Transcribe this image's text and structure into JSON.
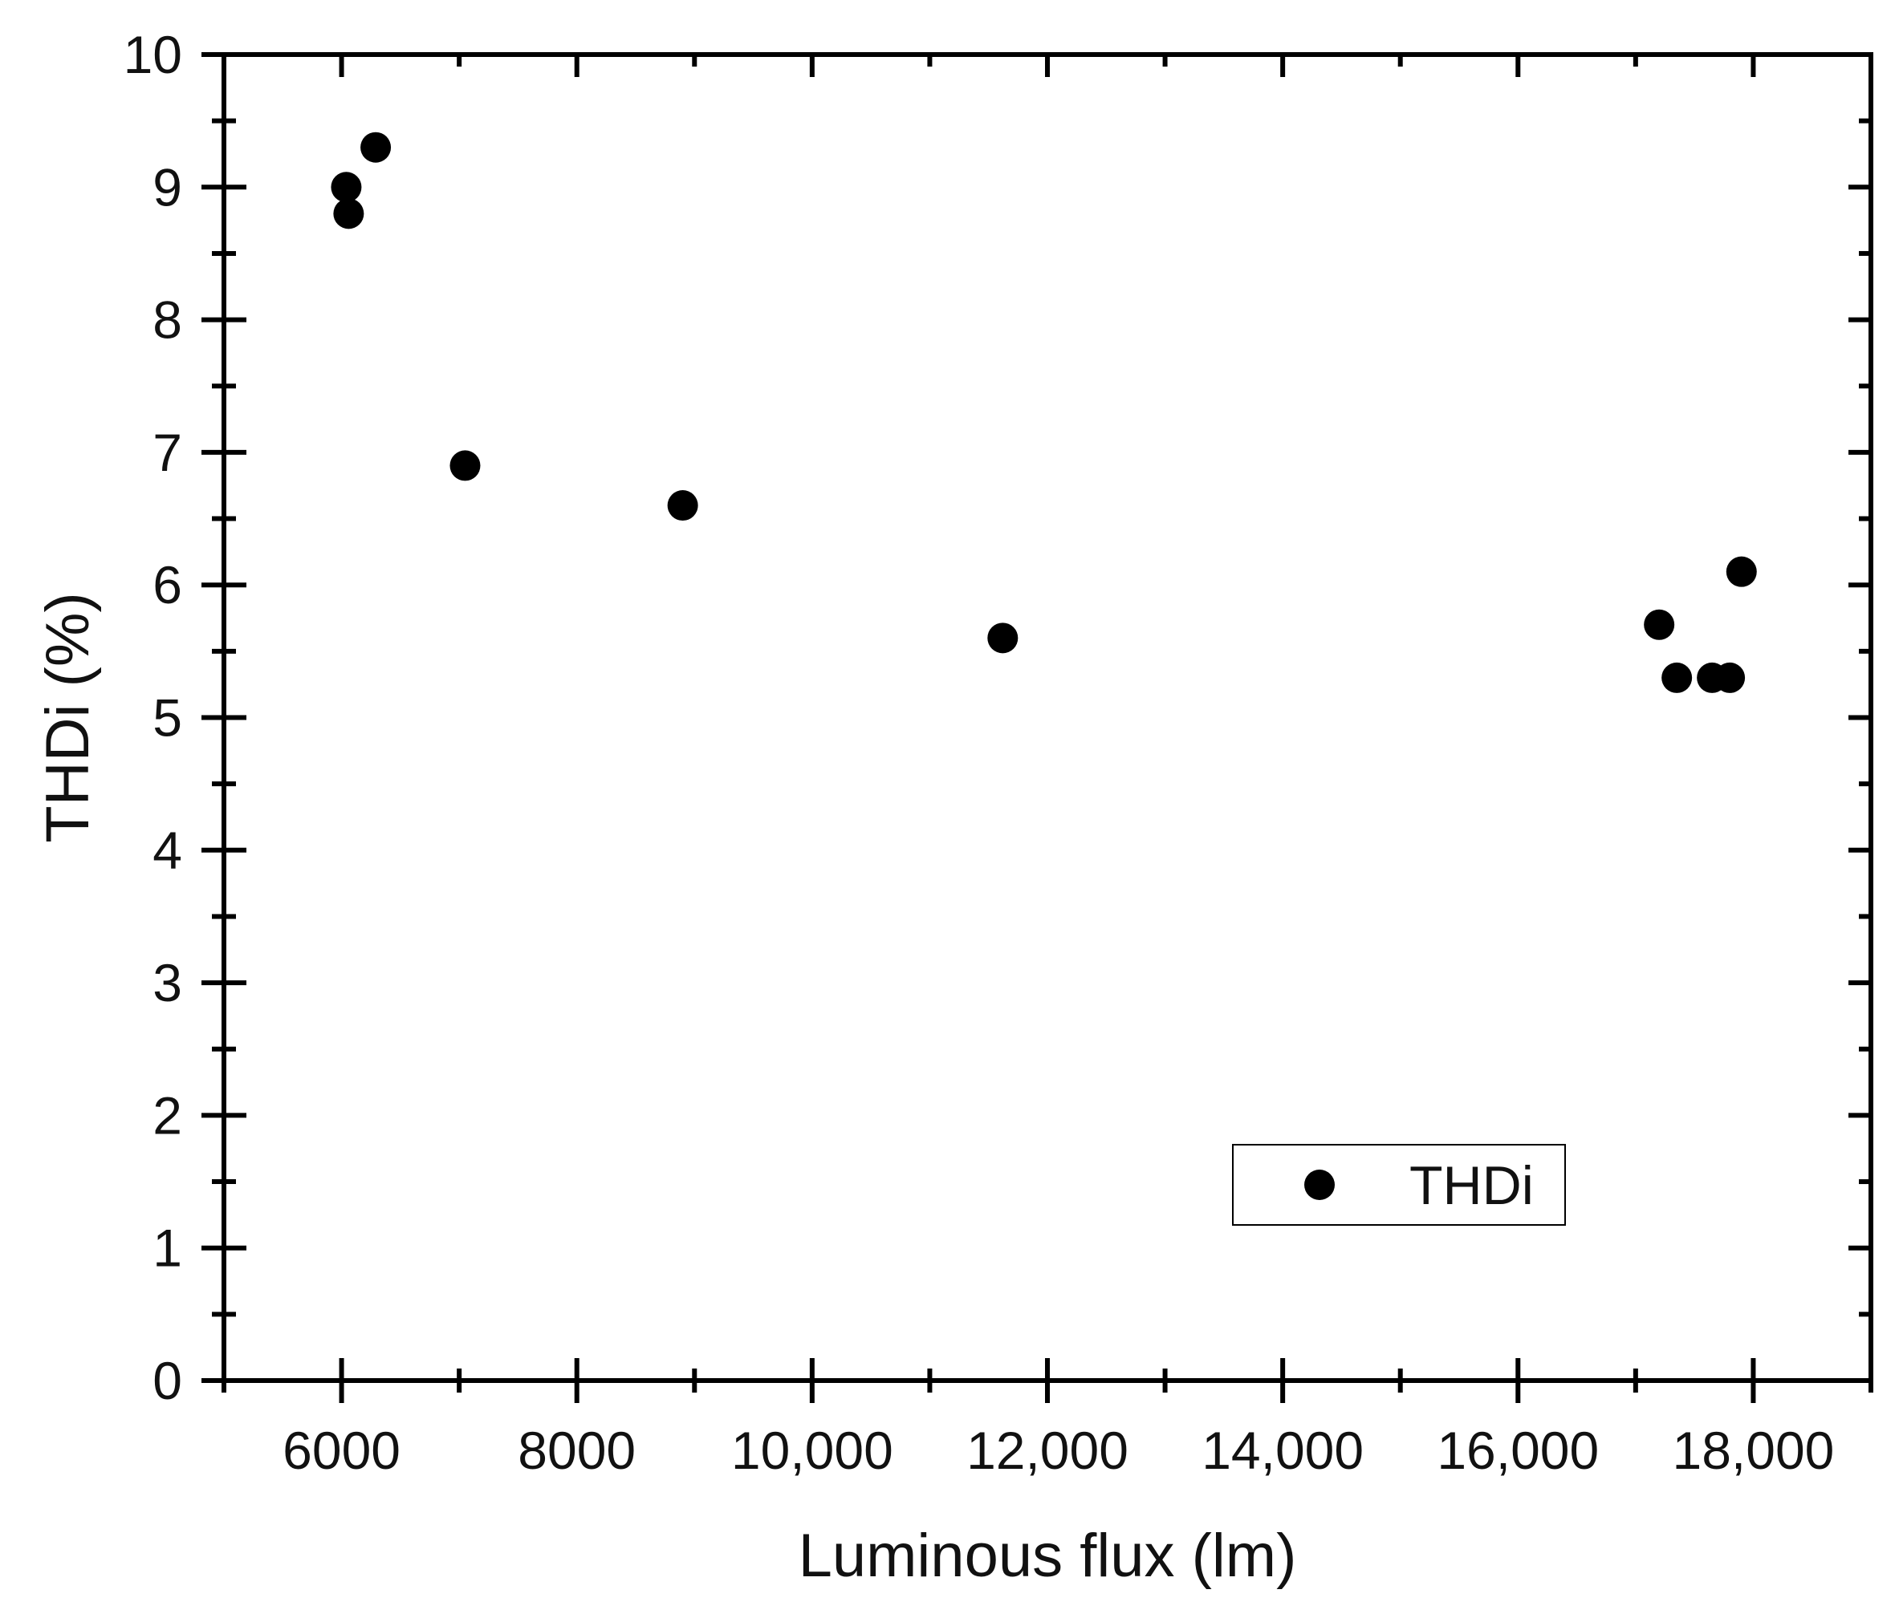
{
  "chart_data": {
    "type": "scatter",
    "xlabel": "Luminous flux (lm)",
    "ylabel": "THDi (%)",
    "xlim": [
      5000,
      19000
    ],
    "ylim": [
      0,
      10
    ],
    "x_ticks": [
      6000,
      8000,
      10000,
      12000,
      14000,
      16000,
      18000
    ],
    "x_tick_labels": [
      "6000",
      "8000",
      "10,000",
      "12,000",
      "14,000",
      "16,000",
      "18,000"
    ],
    "x_minor_step": 1000,
    "y_ticks": [
      0,
      1,
      2,
      3,
      4,
      5,
      6,
      7,
      8,
      9,
      10
    ],
    "y_tick_labels": [
      "0",
      "1",
      "2",
      "3",
      "4",
      "5",
      "6",
      "7",
      "8",
      "9",
      "10"
    ],
    "y_minor_step": 0.5,
    "grid": false,
    "legend_position": "bottom-right",
    "series": [
      {
        "name": "THDi",
        "color": "#000000",
        "marker": "circle",
        "points": [
          {
            "x": 6040,
            "y": 9.0
          },
          {
            "x": 6060,
            "y": 8.8
          },
          {
            "x": 6290,
            "y": 9.3
          },
          {
            "x": 7050,
            "y": 6.9
          },
          {
            "x": 8900,
            "y": 6.6
          },
          {
            "x": 11620,
            "y": 5.6
          },
          {
            "x": 17200,
            "y": 5.7
          },
          {
            "x": 17350,
            "y": 5.3
          },
          {
            "x": 17650,
            "y": 5.3
          },
          {
            "x": 17800,
            "y": 5.3
          },
          {
            "x": 17900,
            "y": 6.1
          }
        ]
      }
    ]
  }
}
